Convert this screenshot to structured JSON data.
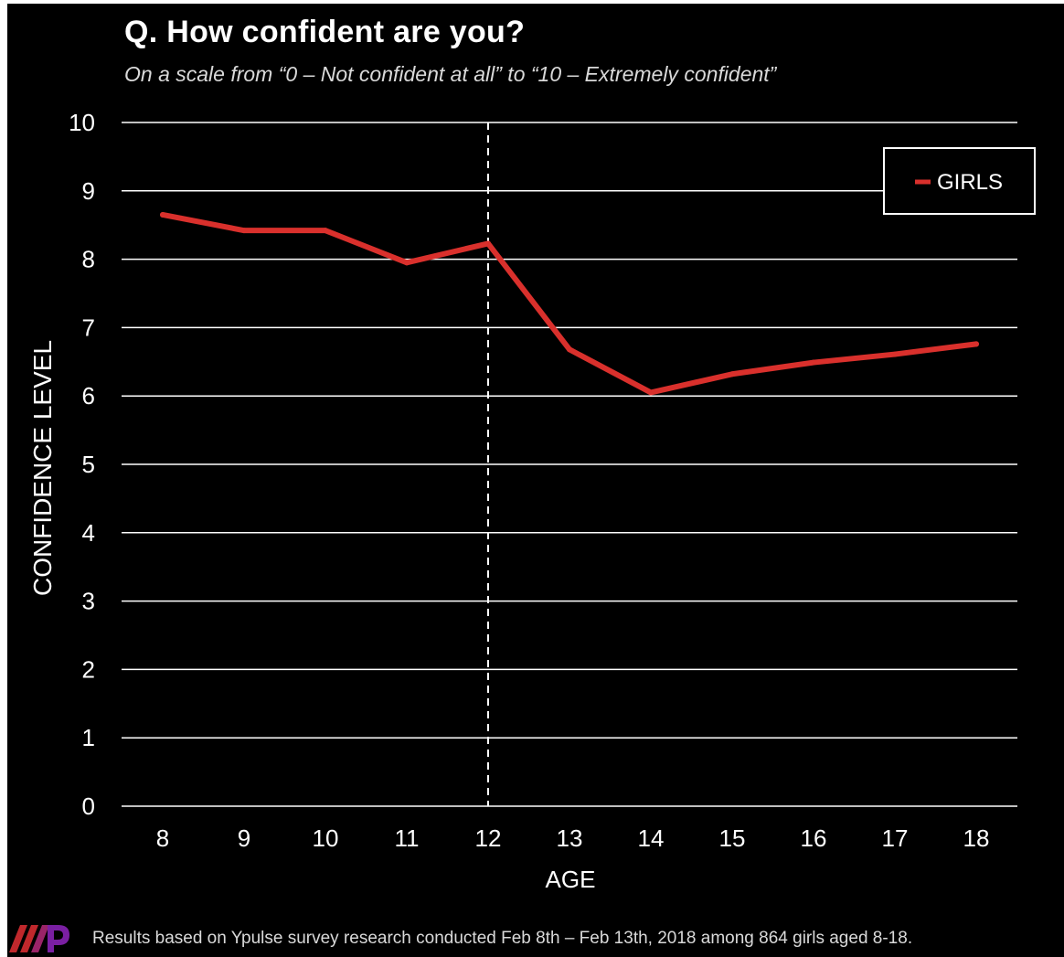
{
  "title": "Q. How confident are you?",
  "subtitle": "On a scale from “0 – Not confident at all” to “10 – Extremely confident”",
  "footer": "Results based on Ypulse survey research conducted Feb 8th – Feb 13th, 2018 among 864 girls aged 8-18.",
  "colors": {
    "background": "#000000",
    "series": "#d9302c",
    "grid": "#ffffff",
    "text": "#ffffff",
    "logo": "#7a1fa2"
  },
  "chart_data": {
    "type": "line",
    "x": [
      8,
      9,
      10,
      11,
      12,
      13,
      14,
      15,
      16,
      17,
      18
    ],
    "series": [
      {
        "name": "GIRLS",
        "values": [
          8.65,
          8.42,
          8.42,
          7.95,
          8.23,
          6.68,
          6.05,
          6.32,
          6.49,
          6.61,
          6.76
        ]
      }
    ],
    "xlabel": "AGE",
    "ylabel": "CONFIDENCE LEVEL",
    "ylim": [
      0,
      10
    ],
    "yticks": [
      0,
      1,
      2,
      3,
      4,
      5,
      6,
      7,
      8,
      9,
      10
    ],
    "xticks": [
      "8",
      "9",
      "10",
      "11",
      "12",
      "13",
      "14",
      "15",
      "16",
      "17",
      "18"
    ],
    "reference_line": {
      "x": 12,
      "style": "dashed"
    },
    "grid": "horizontal",
    "legend": "top-right"
  }
}
